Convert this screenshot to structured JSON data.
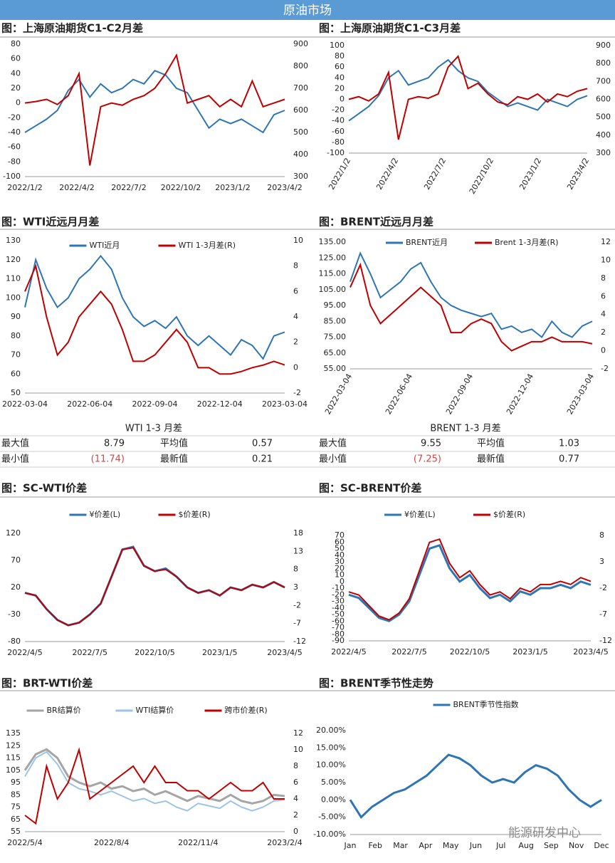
{
  "header": "原油市场",
  "watermark": "能源研发中心",
  "chart_data": [
    {
      "type": "line",
      "title": "图：上海原油期货C1-C2月差",
      "xticks": [
        "2022/1/2",
        "2022/4/2",
        "2022/7/2",
        "2022/10/2",
        "2023/1/2",
        "2023/4/2"
      ],
      "ylim": [
        -100,
        80
      ],
      "yticks": [
        -100,
        -80,
        -60,
        -40,
        -20,
        0,
        20,
        40,
        60,
        80
      ],
      "y2lim": [
        300,
        900
      ],
      "y2ticks": [
        300,
        400,
        500,
        600,
        700,
        800,
        900
      ],
      "series": [
        {
          "color": "#2e75b6",
          "axis": "y2",
          "values": [
            500,
            530,
            560,
            600,
            690,
            740,
            660,
            720,
            680,
            700,
            740,
            720,
            780,
            760,
            700,
            680,
            600,
            520,
            560,
            540,
            560,
            530,
            500,
            580,
            600
          ]
        },
        {
          "color": "#c00000",
          "values": [
            0,
            2,
            5,
            -2,
            10,
            40,
            -85,
            -5,
            0,
            -3,
            5,
            10,
            20,
            40,
            65,
            0,
            5,
            10,
            -5,
            5,
            -5,
            30,
            -5,
            0,
            5
          ]
        }
      ]
    },
    {
      "type": "line",
      "title": "图：上海原油期货C1-C3月差",
      "rotate_xticks": true,
      "xticks": [
        "2022/1/2",
        "2022/4/2",
        "2022/7/2",
        "2022/10/2",
        "2023/1/2",
        "2023/4/2"
      ],
      "ylim": [
        -100,
        100
      ],
      "yticks": [
        -100,
        -80,
        -60,
        -40,
        -20,
        0,
        20,
        40,
        60,
        80,
        100
      ],
      "y2lim": [
        300,
        900
      ],
      "y2ticks": [
        300,
        400,
        500,
        600,
        700,
        800,
        900
      ],
      "series": [
        {
          "color": "#2e75b6",
          "axis": "y2",
          "values": [
            480,
            520,
            560,
            620,
            720,
            760,
            680,
            700,
            720,
            780,
            820,
            760,
            720,
            700,
            640,
            600,
            560,
            580,
            560,
            540,
            600,
            580,
            560,
            600,
            620
          ]
        },
        {
          "color": "#c00000",
          "values": [
            0,
            5,
            -3,
            10,
            50,
            -75,
            0,
            5,
            2,
            10,
            60,
            80,
            20,
            30,
            10,
            -5,
            -10,
            5,
            0,
            10,
            -5,
            10,
            5,
            15,
            20
          ]
        }
      ]
    },
    {
      "type": "line",
      "title": "图：WTI近远月月差",
      "xticks": [
        "2022-03-04",
        "2022-06-04",
        "2022-09-04",
        "2022-12-04",
        "2023-03-04"
      ],
      "ylim": [
        50,
        130
      ],
      "yticks": [
        50,
        60,
        70,
        80,
        90,
        100,
        110,
        120,
        130
      ],
      "y2lim": [
        -2,
        10
      ],
      "y2ticks": [
        -2,
        0,
        2,
        4,
        6,
        8,
        10
      ],
      "series": [
        {
          "name": "WTI近月",
          "color": "#2e75b6",
          "values": [
            95,
            120,
            105,
            95,
            100,
            110,
            115,
            122,
            115,
            100,
            90,
            85,
            88,
            84,
            90,
            80,
            75,
            80,
            75,
            70,
            78,
            75,
            68,
            80,
            82
          ]
        },
        {
          "name": "WTI 1-3月差(R)",
          "color": "#c00000",
          "axis": "y2",
          "values": [
            6,
            8,
            4,
            1,
            2,
            4,
            5,
            6,
            5,
            3,
            0.5,
            0.5,
            1,
            2,
            3,
            2,
            0,
            0,
            -0.5,
            -0.5,
            -0.3,
            0,
            0.2,
            0.5,
            0.21
          ]
        }
      ]
    },
    {
      "type": "line",
      "title": "图：BRENT近远月月差",
      "rotate_xticks": true,
      "xticks": [
        "2022-03-04",
        "2022-06-04",
        "2022-09-04",
        "2022-12-04",
        "2023-03-04"
      ],
      "ylim": [
        55,
        135
      ],
      "yticks": [
        {
          "value": 55,
          "label": "55.00"
        },
        {
          "value": 65,
          "label": "65.00"
        },
        {
          "value": 75,
          "label": "75.00"
        },
        {
          "value": 85,
          "label": "85.00"
        },
        {
          "value": 95,
          "label": "95.00"
        },
        {
          "value": 105,
          "label": "105.00"
        },
        {
          "value": 115,
          "label": "115.00"
        },
        {
          "value": 125,
          "label": "125.00"
        },
        {
          "value": 135,
          "label": "135.00"
        }
      ],
      "y2lim": [
        -2,
        12
      ],
      "y2ticks": [
        -2,
        0,
        2,
        4,
        6,
        8,
        10,
        12
      ],
      "series": [
        {
          "name": "BRENT近月",
          "color": "#2e75b6",
          "values": [
            110,
            128,
            115,
            100,
            105,
            110,
            118,
            122,
            110,
            100,
            95,
            92,
            90,
            88,
            90,
            80,
            82,
            78,
            80,
            75,
            85,
            78,
            75,
            82,
            85
          ]
        },
        {
          "name": "Brent 1-3月差(R)",
          "color": "#c00000",
          "axis": "y2",
          "values": [
            7,
            9.5,
            5,
            3,
            4,
            5,
            6,
            7,
            6,
            5,
            2,
            2,
            3,
            3.5,
            3,
            1,
            0,
            0.5,
            1,
            1,
            1.5,
            1,
            1,
            1,
            0.77
          ]
        }
      ]
    },
    {
      "type": "line",
      "title": "图：SC-WTI价差",
      "xticks": [
        "2022/4/5",
        "2022/7/5",
        "2022/10/5",
        "2023/1/5",
        "2023/4/5"
      ],
      "ylim": [
        -80,
        120
      ],
      "yticks": [
        -80,
        -30,
        20,
        70,
        120
      ],
      "y2lim": [
        -12,
        18
      ],
      "y2ticks": [
        -12,
        -7,
        -2,
        3,
        8,
        13,
        18
      ],
      "series": [
        {
          "name": "¥价差(L)",
          "color": "#2e75b6",
          "width": 3,
          "values": [
            10,
            5,
            -20,
            -40,
            -50,
            -45,
            -30,
            -10,
            40,
            90,
            95,
            60,
            50,
            55,
            40,
            20,
            10,
            15,
            5,
            20,
            15,
            25,
            20,
            30,
            20
          ]
        },
        {
          "name": "$价差(R)",
          "color": "#c00000",
          "axis": "y2",
          "values": [
            1.5,
            0.8,
            -3,
            -6,
            -7.5,
            -6.8,
            -4.5,
            -1.5,
            6,
            13.5,
            14,
            9,
            7.5,
            8,
            6,
            3,
            1.5,
            2.2,
            0.8,
            3,
            2.2,
            3.8,
            3,
            4.5,
            3
          ]
        }
      ]
    },
    {
      "type": "line",
      "title": "图：SC-BRENT价差",
      "xticks": [
        "2022/4/5",
        "2022/7/5",
        "2022/10/5",
        "2023/1/5",
        "2023/4/5"
      ],
      "ylim": [
        -90,
        70
      ],
      "yticks": [
        -90,
        -80,
        -70,
        -60,
        -50,
        -40,
        -30,
        -20,
        -10,
        0,
        10,
        20,
        30,
        40,
        50,
        60,
        70
      ],
      "y2lim": [
        -12,
        8
      ],
      "y2ticks": [
        -12,
        -7,
        -2,
        3,
        8
      ],
      "series": [
        {
          "name": "¥价差(L)",
          "color": "#2e75b6",
          "width": 3,
          "values": [
            -20,
            -25,
            -40,
            -55,
            -60,
            -50,
            -30,
            10,
            50,
            55,
            20,
            0,
            10,
            -10,
            -25,
            -20,
            -30,
            -15,
            -20,
            -10,
            -10,
            -5,
            -10,
            0,
            -5
          ]
        },
        {
          "name": "$价差(R)",
          "color": "#c00000",
          "axis": "y2",
          "values": [
            -2.7,
            -3.3,
            -5.3,
            -7.3,
            -8,
            -6.7,
            -4,
            1.3,
            6.7,
            7.3,
            2.7,
            0,
            1.3,
            -1.3,
            -3.3,
            -2.7,
            -4,
            -2,
            -2.7,
            -1.3,
            -1.3,
            -0.7,
            -1.3,
            0,
            -0.7
          ]
        }
      ]
    },
    {
      "type": "line",
      "title": "图：BRT-WTI价差",
      "xticks": [
        "2022/5/4",
        "2022/8/4",
        "2022/11/4",
        "2023/2/4"
      ],
      "ylim": [
        55,
        135
      ],
      "yticks": [
        55,
        65,
        75,
        85,
        95,
        105,
        115,
        125,
        135
      ],
      "y2lim": [
        0,
        12
      ],
      "y2ticks": [
        0,
        2,
        4,
        6,
        8,
        10,
        12
      ],
      "series": [
        {
          "name": "BR结算价",
          "color": "#a5a5a5",
          "width": 3,
          "values": [
            105,
            118,
            122,
            115,
            100,
            95,
            92,
            95,
            90,
            92,
            88,
            90,
            85,
            88,
            84,
            80,
            84,
            82,
            80,
            85,
            80,
            78,
            80,
            85,
            84
          ]
        },
        {
          "name": "WTI结算价",
          "color": "#9dc3e6",
          "width": 2,
          "values": [
            100,
            115,
            120,
            110,
            95,
            90,
            88,
            85,
            88,
            84,
            80,
            82,
            78,
            80,
            75,
            72,
            78,
            76,
            74,
            80,
            75,
            72,
            75,
            80,
            81
          ]
        },
        {
          "name": "跨市价差(R)",
          "color": "#c00000",
          "axis": "y2",
          "values": [
            2,
            1,
            8,
            4,
            6,
            10,
            4,
            5,
            6,
            7,
            8,
            6,
            8,
            6,
            6,
            5,
            5,
            4,
            5,
            6,
            5,
            5,
            6,
            4,
            4
          ]
        }
      ]
    },
    {
      "type": "line",
      "title": "图：BRENT季节性走势",
      "xticks": [
        "Jan",
        "Feb",
        "Mar",
        "Apr",
        "May",
        "Jun",
        "Jul",
        "Aug",
        "Sep",
        "Nov",
        "Dec"
      ],
      "ylim": [
        -10,
        20
      ],
      "yticks": [
        {
          "value": -10,
          "label": "-10.00%"
        },
        {
          "value": -5,
          "label": "-5.00%"
        },
        {
          "value": 0,
          "label": "0.00%"
        },
        {
          "value": 5,
          "label": "5.00%"
        },
        {
          "value": 10,
          "label": "10.00%"
        },
        {
          "value": 15,
          "label": "15.00%"
        },
        {
          "value": 20,
          "label": "20.00%"
        }
      ],
      "series": [
        {
          "name": "BRENT季节性指数",
          "color": "#2e75b6",
          "width": 3,
          "values": [
            0,
            -5,
            -2,
            0,
            2,
            3,
            5,
            7,
            10,
            13,
            12,
            10,
            7,
            5,
            6,
            5,
            8,
            10,
            9,
            7,
            3,
            0,
            -2,
            0
          ]
        }
      ]
    }
  ],
  "tables": [
    {
      "title": "WTI 1-3 月差",
      "rows": [
        [
          "最大值",
          "8.79",
          "平均值",
          "0.57"
        ],
        [
          "最小值",
          "(11.74)",
          "最新值",
          "0.21"
        ]
      ]
    },
    {
      "title": "BRENT 1-3 月差",
      "rows": [
        [
          "最大值",
          "9.55",
          "平均值",
          "1.03"
        ],
        [
          "最小值",
          "(7.25)",
          "最新值",
          "0.77"
        ]
      ]
    }
  ]
}
